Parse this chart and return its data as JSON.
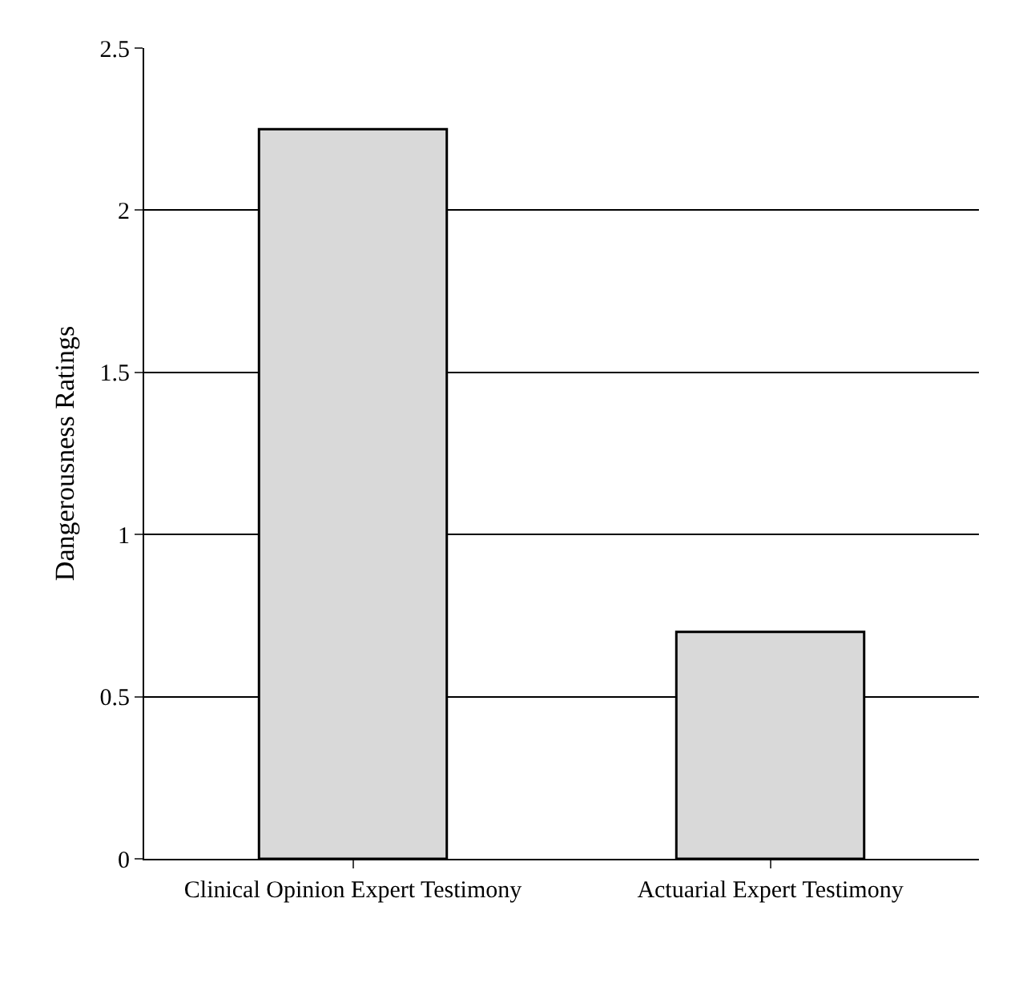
{
  "chart_data": {
    "type": "bar",
    "ylabel": "Dangerousness Ratings",
    "categories": [
      "Clinical Opinion Expert Testimony",
      "Actuarial Expert Testimony"
    ],
    "values": [
      2.25,
      0.7
    ],
    "color": "#d9d9d9",
    "ylim": [
      0,
      2.5
    ],
    "yticks": [
      0,
      0.5,
      1,
      1.5,
      2,
      2.5
    ],
    "grid": "y"
  }
}
